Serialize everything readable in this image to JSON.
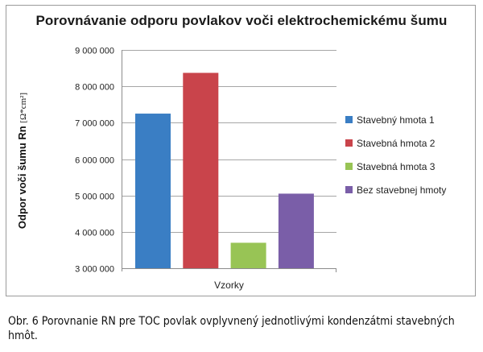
{
  "chart_data": {
    "type": "bar",
    "title": "Porovnávanie odporu povlakov voči elektrochemickému šumu",
    "xlabel": "Vzorky",
    "ylabel": "Odpor voči šumu Rn",
    "ylabel_unit": "[Ω*cm²]",
    "ylim": [
      3000000,
      9000000
    ],
    "yticks": [
      3000000,
      4000000,
      5000000,
      6000000,
      7000000,
      8000000,
      9000000
    ],
    "ytick_labels": [
      "3 000 000",
      "4 000 000",
      "5 000 000",
      "6 000 000",
      "7 000 000",
      "8 000 000",
      "9 000 000"
    ],
    "grid": "horizontal",
    "legend_position": "right",
    "series": [
      {
        "name": "Stavebný hmota 1",
        "value": 7250000,
        "color": "#3a7ec4"
      },
      {
        "name": "Stavebná hmota 2",
        "value": 8370000,
        "color": "#c9444b"
      },
      {
        "name": "Stavebná hmota 3",
        "value": 3700000,
        "color": "#98c455"
      },
      {
        "name": "Bez stavebnej hmoty",
        "value": 5050000,
        "color": "#7a5ea8"
      }
    ]
  },
  "caption": "Obr. 6 Porovnanie RN pre TOC povlak ovplyvnený jednotlivými kondenzátmi stavebných hmôt."
}
